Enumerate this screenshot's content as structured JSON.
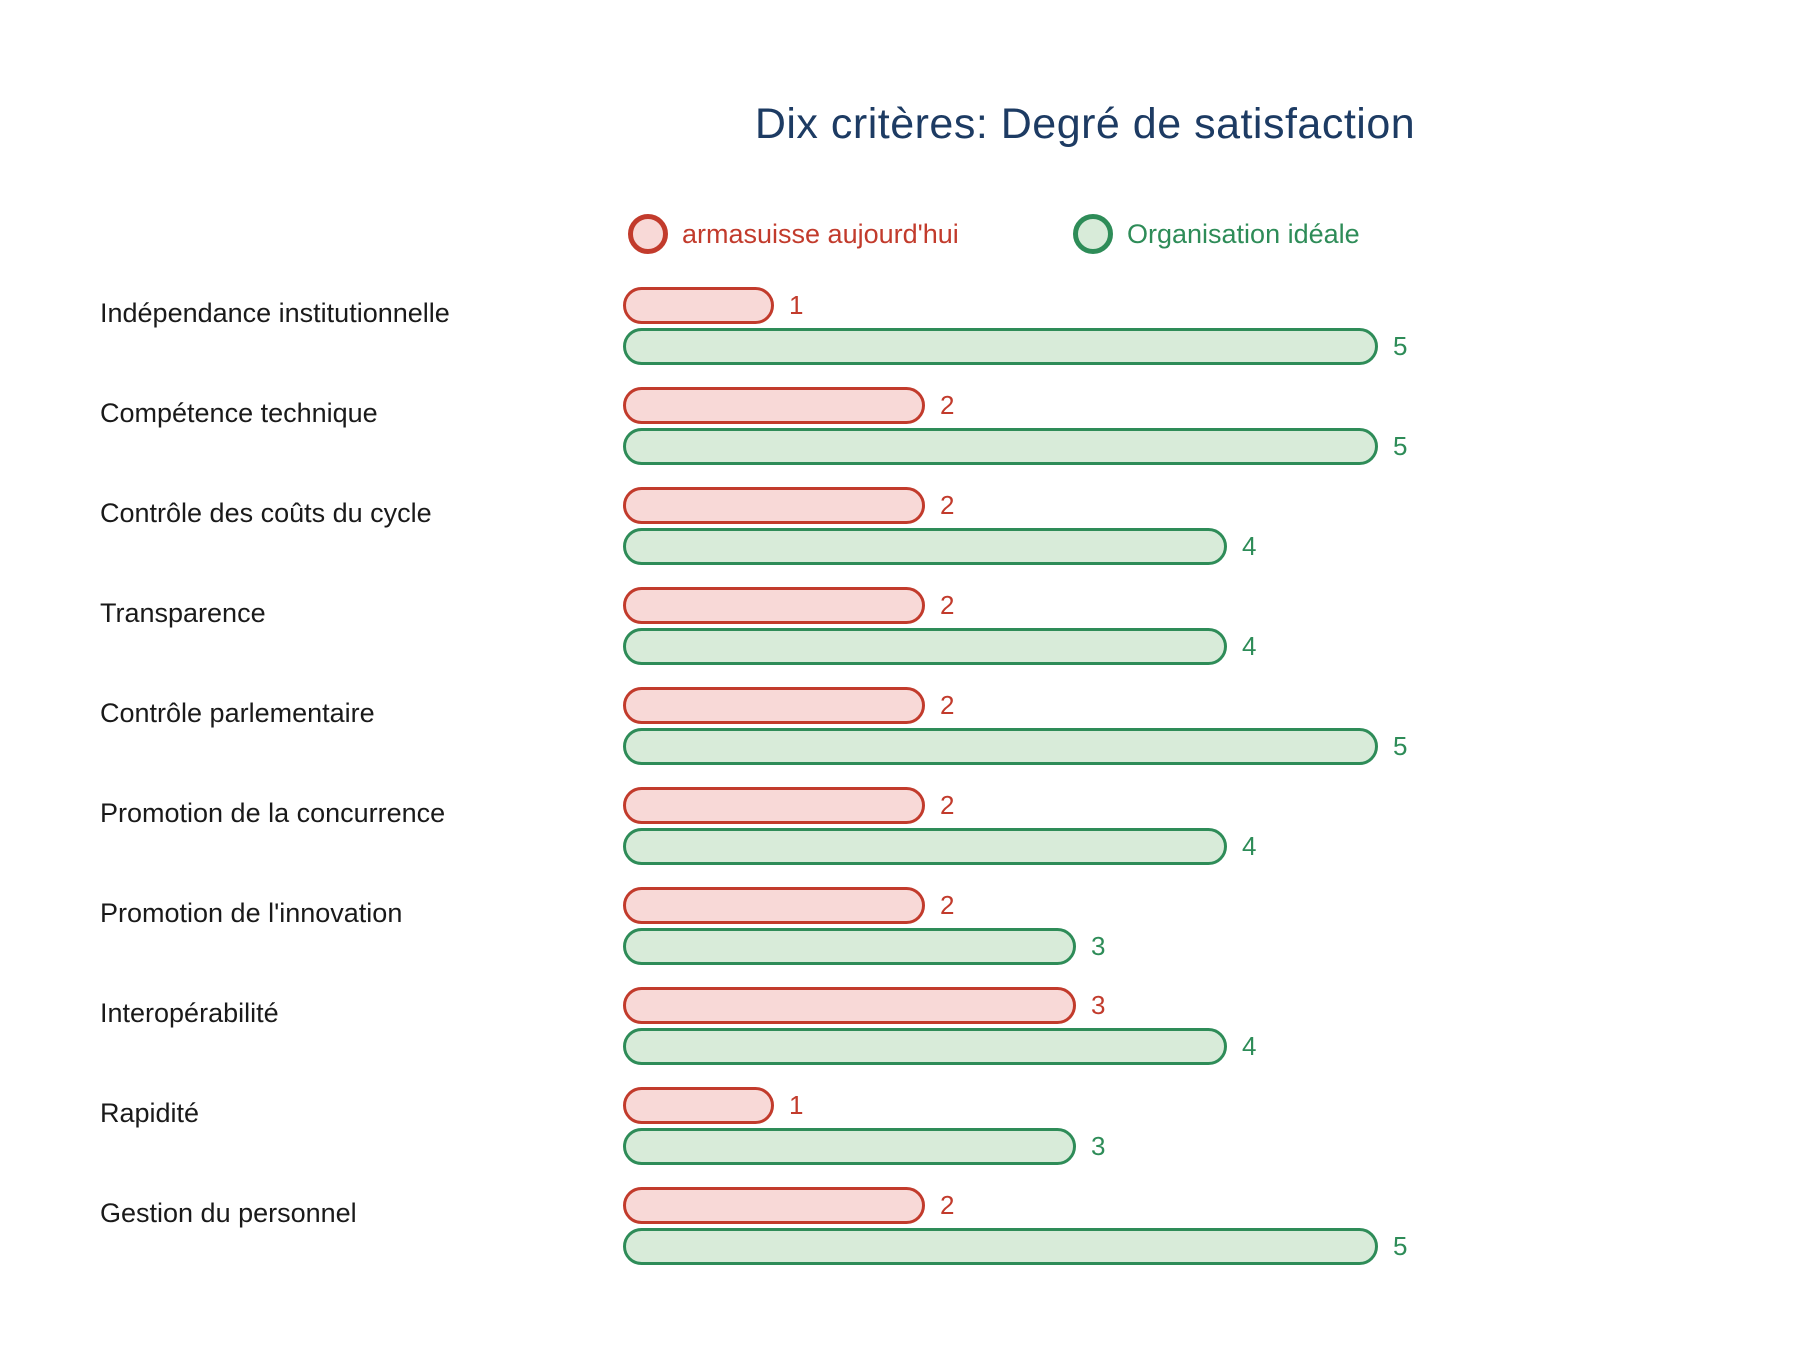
{
  "title": "Dix critères: Degré de satisfaction",
  "legend": {
    "series1_label": "armasuisse aujourd'hui",
    "series2_label": "Organisation idéale"
  },
  "colors": {
    "title": "#1d3b63",
    "label_text": "#1a1a1a",
    "series1_border": "#c23b2c",
    "series1_fill": "#f8d9d7",
    "series2_border": "#2e8c58",
    "series2_fill": "#d8ebd9",
    "background": "#ffffff"
  },
  "chart_data": {
    "type": "bar",
    "orientation": "horizontal",
    "title": "Dix critères: Degré de satisfaction",
    "categories": [
      "Indépendance institutionnelle",
      "Compétence technique",
      "Contrôle des coûts du cycle",
      "Transparence",
      "Contrôle parlementaire",
      "Promotion de la concurrence",
      "Promotion de l'innovation",
      "Interopérabilité",
      "Rapidité",
      "Gestion du personnel"
    ],
    "series": [
      {
        "name": "armasuisse aujourd'hui",
        "values": [
          1,
          2,
          2,
          2,
          2,
          2,
          2,
          3,
          1,
          2
        ]
      },
      {
        "name": "Organisation idéale",
        "values": [
          5,
          5,
          4,
          4,
          5,
          4,
          3,
          4,
          3,
          5
        ]
      }
    ],
    "xlim": [
      0,
      5
    ],
    "value_labels": true,
    "grid": false,
    "legend_position": "top"
  }
}
